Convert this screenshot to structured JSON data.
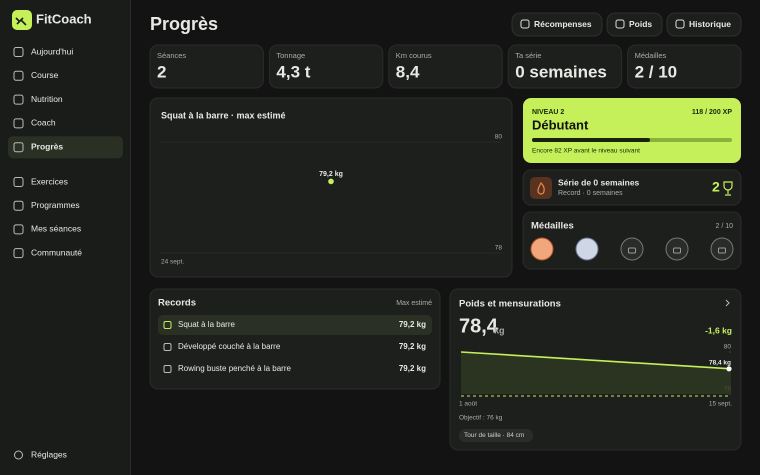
{
  "sidebar": {
    "brand": "FitCoach",
    "nav": [
      {
        "label": "Aujourd'hui"
      },
      {
        "label": "Course"
      },
      {
        "label": "Nutrition"
      },
      {
        "label": "Coach"
      },
      {
        "label": "Progrès",
        "active": true
      }
    ],
    "nav2": [
      {
        "label": "Exercices"
      },
      {
        "label": "Programmes"
      },
      {
        "label": "Mes séances"
      },
      {
        "label": "Communauté"
      }
    ],
    "settings": "Réglages"
  },
  "header": {
    "title": "Progrès",
    "buttons": [
      "Récompenses",
      "Poids",
      "Historique"
    ]
  },
  "stats": [
    {
      "label": "Séances",
      "value": "2"
    },
    {
      "label": "Tonnage",
      "value": "4,3 t"
    },
    {
      "label": "Km courus",
      "value": "8,4"
    },
    {
      "label": "Ta série",
      "value": "0 semaines"
    },
    {
      "label": "Médailles",
      "value": "2 / 10"
    }
  ],
  "squat_chart": {
    "type": "scatter",
    "title": "Squat à la barre · max estimé",
    "categories": [
      "24 sept."
    ],
    "values": [
      79.2
    ],
    "value_labels": [
      "79,2 kg"
    ],
    "ylim": [
      78,
      80
    ],
    "yticks": [
      78,
      80
    ],
    "color": "#c5f05a"
  },
  "level": {
    "name": "NIVEAU 2",
    "rank": "Débutant",
    "progress": {
      "value": 118,
      "max": 200,
      "label": "118 / 200 XP"
    },
    "note": "Encore 82 XP avant le niveau suivant"
  },
  "streak": {
    "title": "Série de 0 semaines",
    "record": "Record · 0 semaines",
    "trophies": "2"
  },
  "medals": {
    "title": "Médailles",
    "count": "2 / 10"
  },
  "records": {
    "title": "Records",
    "column": "Max estimé",
    "rows": [
      [
        "Squat à la barre",
        "79,2 kg"
      ],
      [
        "Développé couché à la barre",
        "79,2 kg"
      ],
      [
        "Rowing buste penché à la barre",
        "79,2 kg"
      ]
    ]
  },
  "weight": {
    "title": "Poids et mensurations",
    "current": "78,4",
    "unit": "kg",
    "change": "-1,6 kg",
    "goal_text": "Objectif : 76 kg",
    "waist": "Tour de taille · 84 cm",
    "chart": {
      "type": "line",
      "categories": [
        "1 août",
        "15 sept."
      ],
      "values": [
        80,
        78.4
      ],
      "value_labels": [
        null,
        "78,4 kg"
      ],
      "ylim": [
        76,
        80
      ],
      "yticks": [
        76,
        80
      ],
      "goal": 76,
      "color": "#c5f05a"
    }
  }
}
